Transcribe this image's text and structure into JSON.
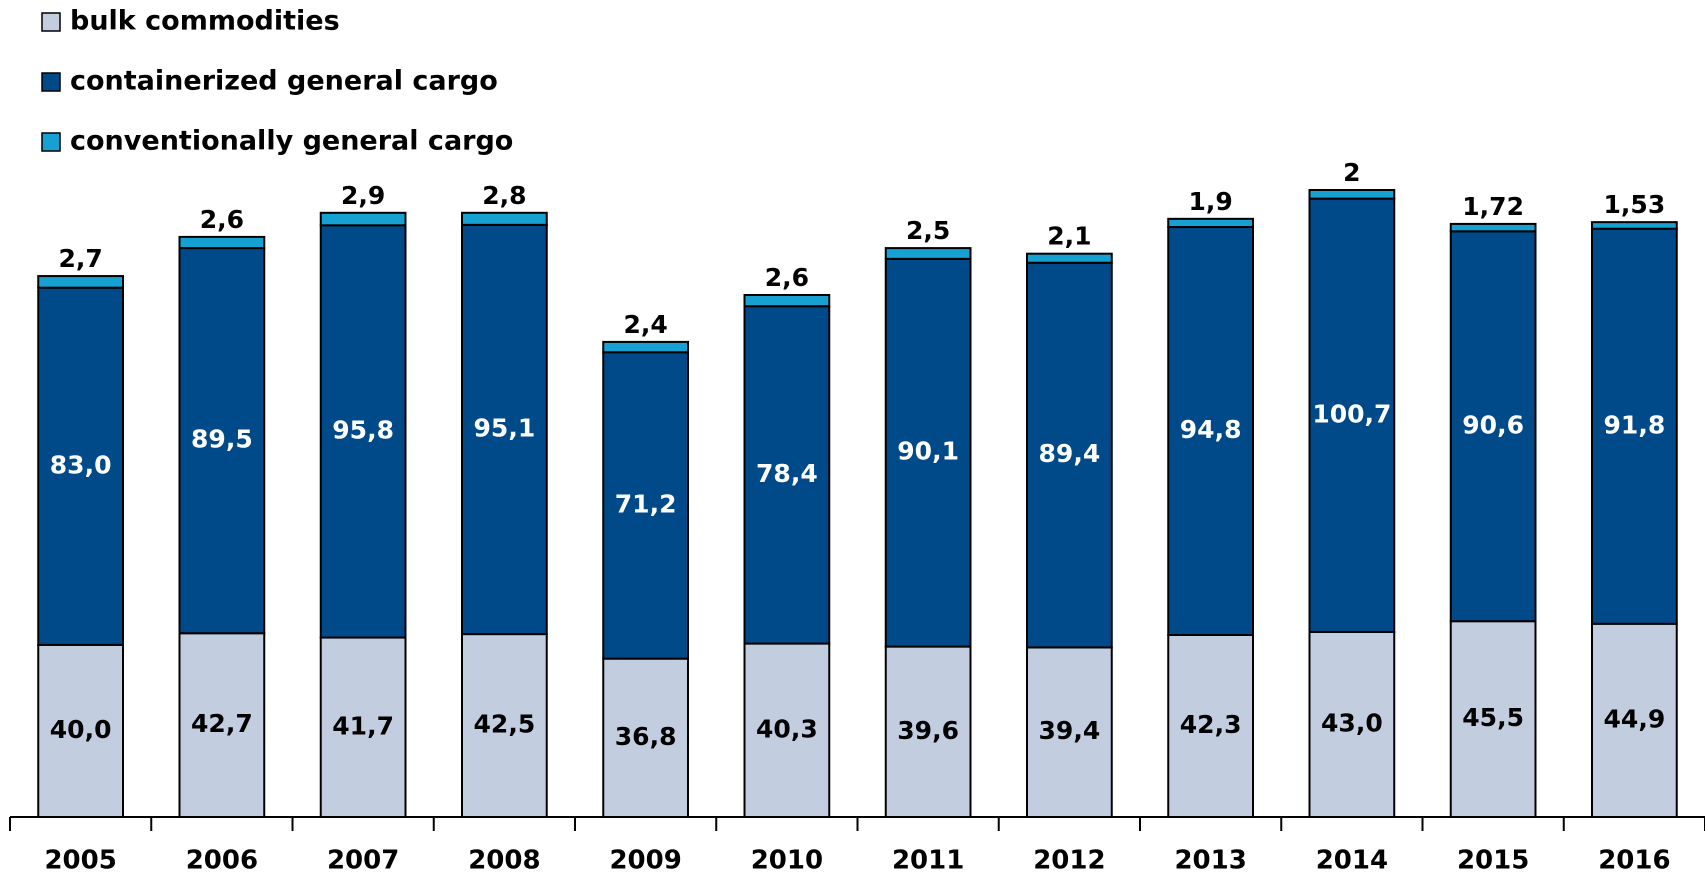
{
  "chart_data": {
    "type": "stacked_bar",
    "categories": [
      "2005",
      "2006",
      "2007",
      "2008",
      "2009",
      "2010",
      "2011",
      "2012",
      "2013",
      "2014",
      "2015",
      "2016"
    ],
    "series": [
      {
        "name": "bulk commodities",
        "color": "#c3cde0",
        "label_color": "#000000",
        "values": [
          40.0,
          42.7,
          41.7,
          42.5,
          36.8,
          40.3,
          39.6,
          39.4,
          42.3,
          43.0,
          45.5,
          44.9
        ],
        "value_labels": [
          "40,0",
          "42,7",
          "41,7",
          "42,5",
          "36,8",
          "40,3",
          "39,6",
          "39,4",
          "42,3",
          "43,0",
          "45,5",
          "44,9"
        ]
      },
      {
        "name": "containerized general cargo",
        "color": "#004a8a",
        "label_color": "#ffffff",
        "values": [
          83.0,
          89.5,
          95.8,
          95.1,
          71.2,
          78.4,
          90.1,
          89.4,
          94.8,
          100.7,
          90.6,
          91.8
        ],
        "value_labels": [
          "83,0",
          "89,5",
          "95,8",
          "95,1",
          "71,2",
          "78,4",
          "90,1",
          "89,4",
          "94,8",
          "100,7",
          "90,6",
          "91,8"
        ]
      },
      {
        "name": "conventionally general cargo",
        "color": "#17a0d2",
        "label_color": "#000000",
        "values": [
          2.7,
          2.6,
          2.9,
          2.8,
          2.4,
          2.6,
          2.5,
          2.1,
          1.9,
          2,
          1.72,
          1.53
        ],
        "value_labels": [
          "2,7",
          "2,6",
          "2,9",
          "2,8",
          "2,4",
          "2,6",
          "2,5",
          "2,1",
          "1,9",
          "2",
          "1,72",
          "1,53"
        ]
      }
    ]
  }
}
